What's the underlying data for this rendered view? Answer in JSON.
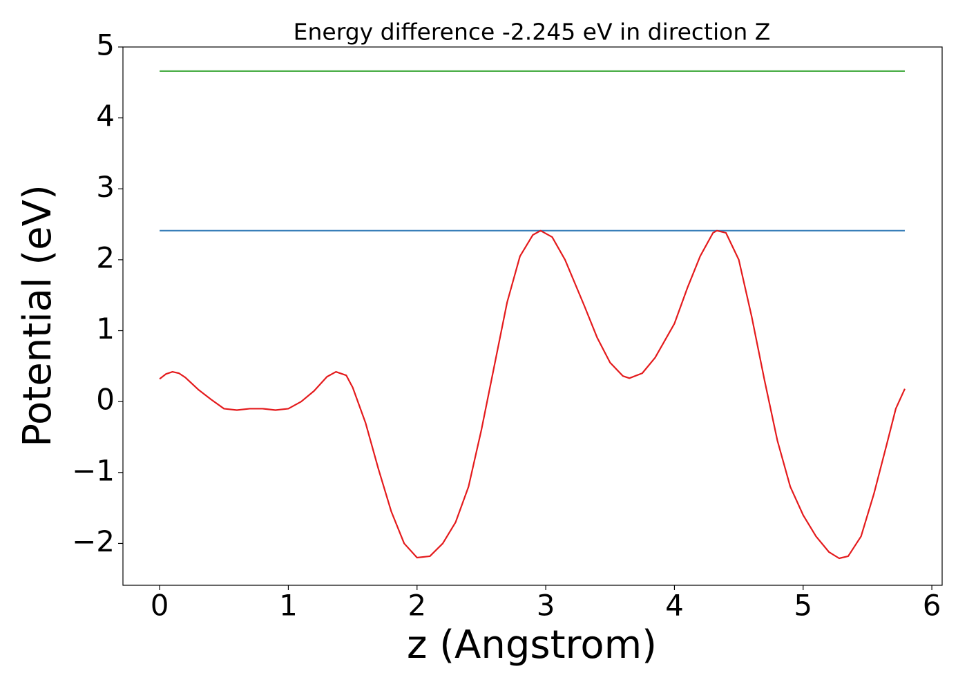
{
  "chart_data": {
    "type": "line",
    "title": "Energy difference -2.245 eV in direction Z",
    "xlabel": "z (Angstrom)",
    "ylabel": "Potential (eV)",
    "xlim": [
      -0.285,
      6.08
    ],
    "ylim": [
      -2.59,
      5
    ],
    "xticks": [
      0,
      1,
      2,
      3,
      4,
      5,
      6
    ],
    "yticks": [
      {
        "value": -2,
        "label": "−2"
      },
      {
        "value": -1,
        "label": "−1"
      },
      0,
      1,
      2,
      3,
      4,
      5
    ],
    "grid": false,
    "series": [
      {
        "color": "#4daf4a",
        "x": [
          0,
          5.79
        ],
        "values": [
          4.66,
          4.66
        ]
      },
      {
        "color": "#377eb8",
        "x": [
          0,
          5.79
        ],
        "values": [
          2.41,
          2.41
        ]
      },
      {
        "color": "#e41a1c",
        "x": [
          0,
          0.05,
          0.1,
          0.15,
          0.2,
          0.3,
          0.4,
          0.5,
          0.6,
          0.7,
          0.8,
          0.9,
          1.0,
          1.1,
          1.2,
          1.3,
          1.37,
          1.45,
          1.5,
          1.6,
          1.7,
          1.8,
          1.9,
          2.0,
          2.1,
          2.2,
          2.3,
          2.4,
          2.5,
          2.6,
          2.7,
          2.8,
          2.9,
          2.96,
          3.05,
          3.15,
          3.3,
          3.4,
          3.5,
          3.6,
          3.65,
          3.75,
          3.85,
          4.0,
          4.1,
          4.2,
          4.3,
          4.33,
          4.4,
          4.5,
          4.6,
          4.7,
          4.8,
          4.9,
          5.0,
          5.1,
          5.2,
          5.28,
          5.35,
          5.45,
          5.55,
          5.65,
          5.72,
          5.79
        ],
        "values": [
          0.32,
          0.39,
          0.42,
          0.4,
          0.34,
          0.17,
          0.03,
          -0.1,
          -0.12,
          -0.1,
          -0.1,
          -0.12,
          -0.1,
          0.0,
          0.15,
          0.35,
          0.42,
          0.37,
          0.2,
          -0.3,
          -0.95,
          -1.55,
          -2.0,
          -2.2,
          -2.18,
          -2.0,
          -1.7,
          -1.2,
          -0.4,
          0.5,
          1.4,
          2.05,
          2.35,
          2.41,
          2.32,
          2.0,
          1.35,
          0.9,
          0.55,
          0.36,
          0.33,
          0.4,
          0.62,
          1.1,
          1.6,
          2.05,
          2.38,
          2.41,
          2.38,
          2.0,
          1.2,
          0.3,
          -0.55,
          -1.2,
          -1.6,
          -1.9,
          -2.12,
          -2.21,
          -2.18,
          -1.9,
          -1.3,
          -0.6,
          -0.1,
          0.18
        ]
      }
    ]
  }
}
